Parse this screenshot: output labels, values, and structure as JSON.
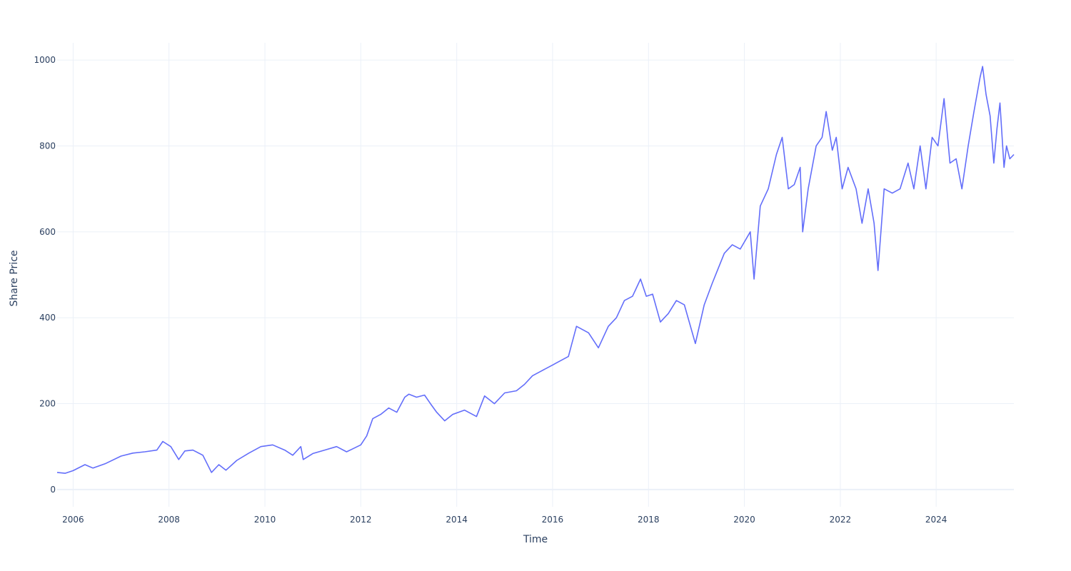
{
  "chart_data": {
    "type": "line",
    "title": "",
    "xlabel": "Time",
    "ylabel": "Share Price",
    "xlim": [
      "2005-09-01",
      "2025-08-15"
    ],
    "ylim": [
      -40,
      1040
    ],
    "x_ticks": [
      "2006",
      "2008",
      "2010",
      "2012",
      "2014",
      "2016",
      "2018",
      "2020",
      "2022",
      "2024"
    ],
    "y_ticks": [
      0,
      200,
      400,
      600,
      800,
      1000
    ],
    "grid": true,
    "legend": "none",
    "line_color": "#636efa",
    "grid_color": "#ebf0f8",
    "text_color": "#2a3f5f",
    "series": [
      {
        "x": [
          "2005-09-01",
          "2005-11-01",
          "2006-01-01",
          "2006-04-01",
          "2006-06-01",
          "2006-09-01",
          "2007-01-01",
          "2007-04-01",
          "2007-07-01",
          "2007-10-01",
          "2007-11-15",
          "2008-01-15",
          "2008-03-15",
          "2008-05-01",
          "2008-07-01",
          "2008-09-15",
          "2008-11-20",
          "2009-01-15",
          "2009-03-10",
          "2009-06-01",
          "2009-09-01",
          "2009-12-01",
          "2010-03-01",
          "2010-06-01",
          "2010-08-01",
          "2010-10-01",
          "2010-10-20",
          "2011-01-01",
          "2011-04-01",
          "2011-07-01",
          "2011-09-15",
          "2011-11-01",
          "2012-01-01",
          "2012-02-15",
          "2012-04-01",
          "2012-06-01",
          "2012-08-01",
          "2012-10-01",
          "2012-12-01",
          "2013-01-01",
          "2013-03-01",
          "2013-05-01",
          "2013-06-15",
          "2013-08-01",
          "2013-10-01",
          "2013-12-01",
          "2014-03-01",
          "2014-06-01",
          "2014-08-01",
          "2014-10-15",
          "2015-01-01",
          "2015-04-01",
          "2015-06-01",
          "2015-08-01",
          "2015-10-01",
          "2016-01-01",
          "2016-03-01",
          "2016-05-01",
          "2016-07-01",
          "2016-10-01",
          "2016-12-15",
          "2017-03-01",
          "2017-05-01",
          "2017-07-01",
          "2017-09-01",
          "2017-11-01",
          "2017-12-15",
          "2018-02-01",
          "2018-04-01",
          "2018-06-01",
          "2018-08-01",
          "2018-10-01",
          "2018-12-24",
          "2019-03-01",
          "2019-05-01",
          "2019-08-01",
          "2019-10-01",
          "2019-12-01",
          "2020-02-15",
          "2020-03-15",
          "2020-05-01",
          "2020-07-01",
          "2020-09-01",
          "2020-10-15",
          "2020-12-01",
          "2021-01-15",
          "2021-03-01",
          "2021-03-20",
          "2021-05-01",
          "2021-07-01",
          "2021-08-15",
          "2021-09-15",
          "2021-11-01",
          "2021-12-01",
          "2022-01-15",
          "2022-03-01",
          "2022-05-01",
          "2022-06-15",
          "2022-08-01",
          "2022-09-15",
          "2022-10-15",
          "2022-12-01",
          "2023-02-01",
          "2023-04-01",
          "2023-06-01",
          "2023-07-15",
          "2023-09-01",
          "2023-10-15",
          "2023-12-01",
          "2024-01-15",
          "2024-03-01",
          "2024-04-15",
          "2024-06-01",
          "2024-07-15",
          "2024-09-01",
          "2024-10-15",
          "2024-12-01",
          "2024-12-20",
          "2025-01-15",
          "2025-02-15",
          "2025-03-15",
          "2025-04-08",
          "2025-05-01",
          "2025-06-01",
          "2025-06-20",
          "2025-07-15",
          "2025-08-15"
        ],
        "y": [
          40,
          38,
          44,
          58,
          50,
          60,
          78,
          85,
          88,
          92,
          112,
          100,
          70,
          90,
          92,
          80,
          40,
          58,
          45,
          68,
          85,
          100,
          104,
          92,
          80,
          100,
          70,
          84,
          92,
          100,
          88,
          95,
          104,
          125,
          165,
          175,
          190,
          180,
          215,
          222,
          215,
          220,
          200,
          180,
          160,
          175,
          185,
          170,
          218,
          200,
          225,
          230,
          245,
          265,
          275,
          290,
          300,
          310,
          380,
          365,
          330,
          380,
          400,
          440,
          450,
          490,
          450,
          455,
          390,
          410,
          440,
          430,
          340,
          430,
          480,
          550,
          570,
          560,
          600,
          490,
          660,
          700,
          780,
          820,
          700,
          710,
          750,
          600,
          700,
          800,
          820,
          880,
          790,
          820,
          700,
          750,
          700,
          620,
          700,
          620,
          510,
          700,
          690,
          700,
          760,
          700,
          800,
          700,
          820,
          800,
          910,
          760,
          770,
          700,
          800,
          880,
          960,
          985,
          920,
          870,
          760,
          840,
          900,
          750,
          800,
          770,
          780
        ]
      }
    ]
  }
}
